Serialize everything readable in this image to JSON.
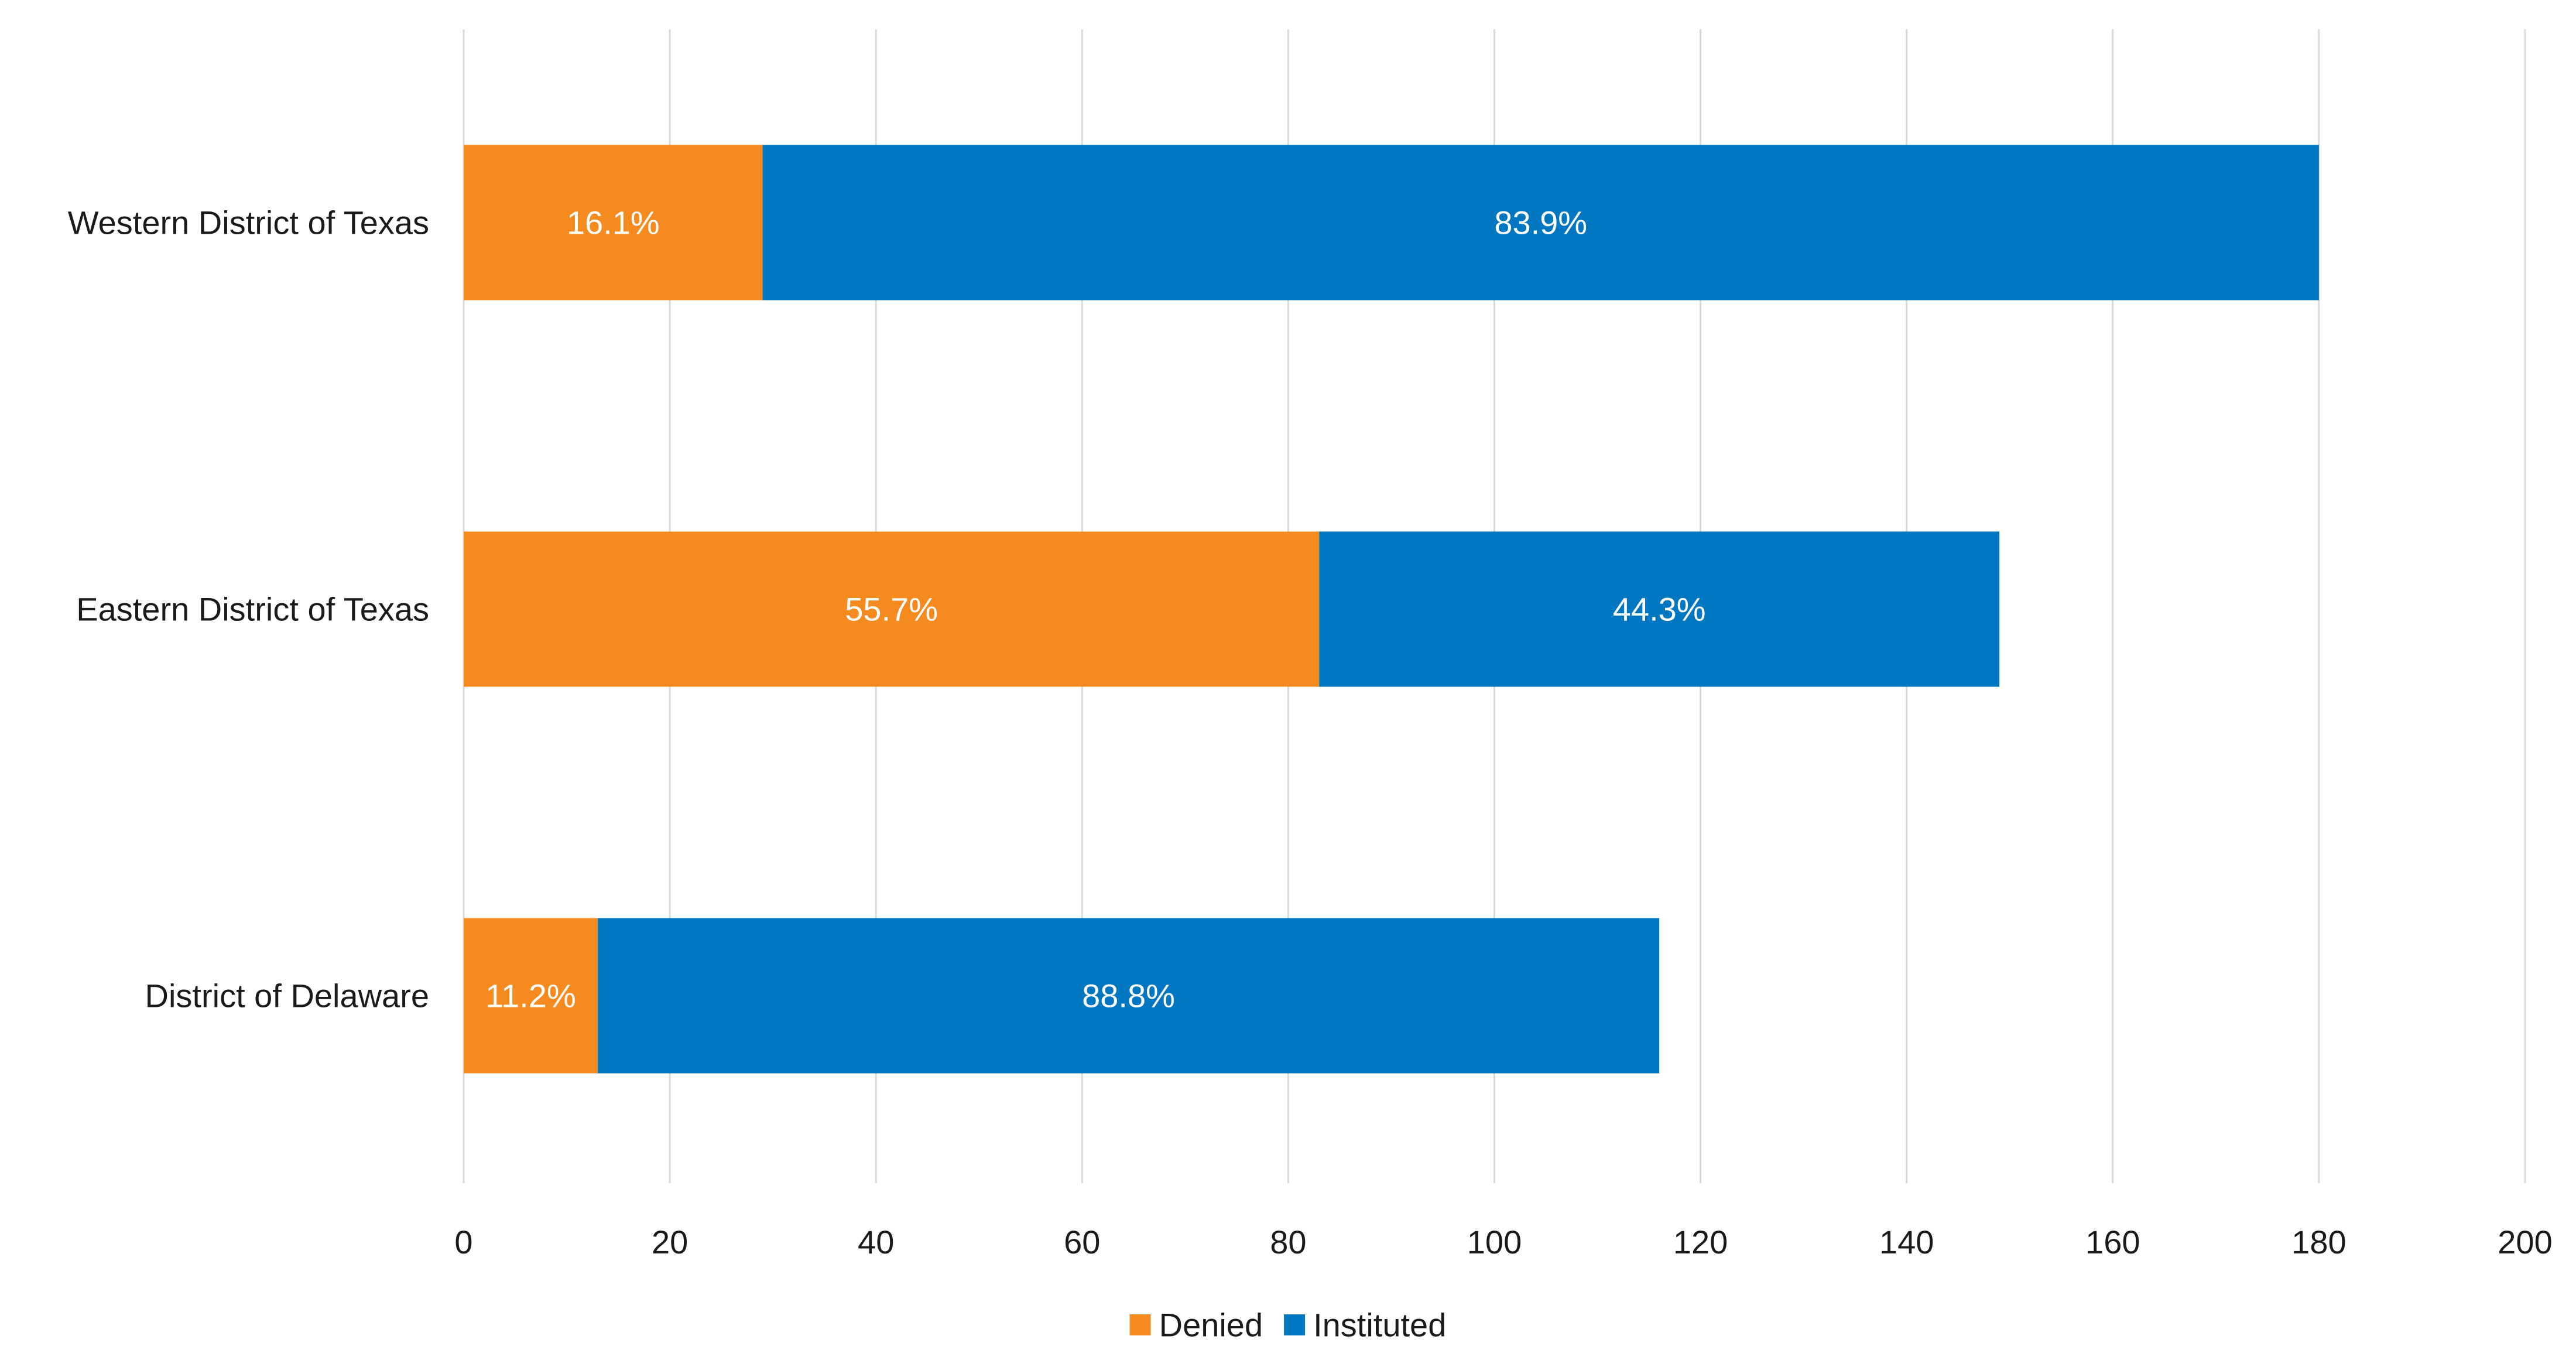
{
  "chart_data": {
    "type": "bar",
    "orientation": "horizontal",
    "stacked": true,
    "title": "",
    "xlabel": "",
    "ylabel": "",
    "categories": [
      "Western District of Texas",
      "Eastern District of Texas",
      "District of Delaware"
    ],
    "series": [
      {
        "name": "Denied",
        "color": "#F58B1F",
        "values": [
          29,
          83,
          13
        ],
        "labels": [
          "16.1%",
          "55.7%",
          "11.2%"
        ]
      },
      {
        "name": "Instituted",
        "color": "#0077C0",
        "values": [
          151,
          66,
          103
        ],
        "labels": [
          "83.9%",
          "44.3%",
          "88.8%"
        ]
      }
    ],
    "xlim": [
      0,
      200
    ],
    "xticks": [
      "0",
      "20",
      "40",
      "60",
      "80",
      "100",
      "120",
      "140",
      "160",
      "180",
      "200"
    ],
    "grid": true,
    "legend_position": "bottom-center"
  }
}
